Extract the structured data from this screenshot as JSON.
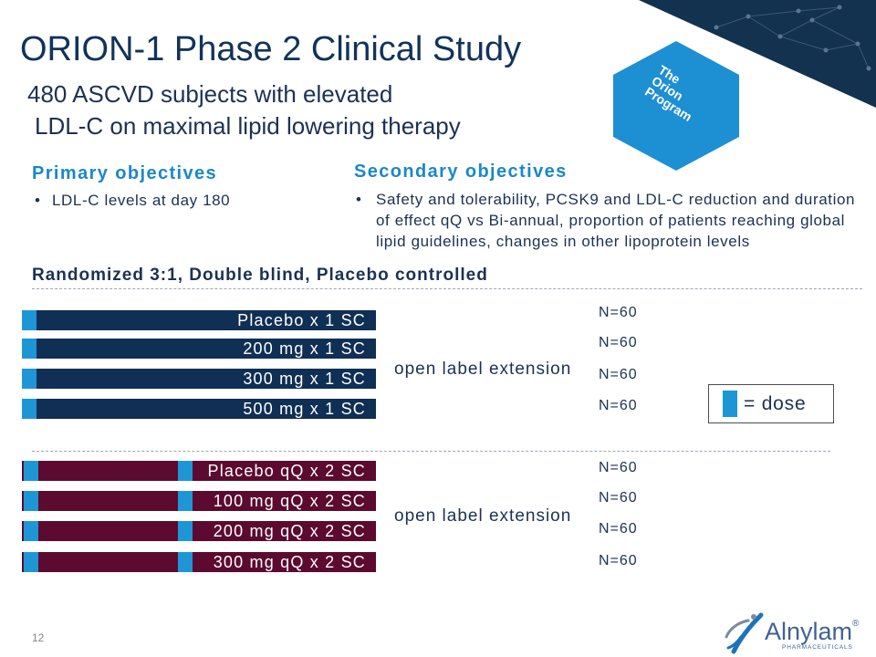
{
  "slide": {
    "title": "ORION-1 Phase 2 Clinical Study",
    "subtitle_line1": "480 ASCVD subjects with elevated",
    "subtitle_line2": "LDL-C on maximal lipid lowering therapy",
    "page_number": "12"
  },
  "program_logo": {
    "lines": [
      "The",
      "Orion",
      "Program"
    ]
  },
  "objectives": {
    "primary": {
      "heading": "Primary objectives",
      "bullets": [
        "LDL-C levels at day 180"
      ]
    },
    "secondary": {
      "heading": "Secondary objectives",
      "bullet_lines": [
        "Safety and tolerability, PCSK9 and LDL-C reduction and duration",
        "of effect qQ vs Bi-annual, proportion of patients reaching global",
        "lipid guidelines, changes in other lipoprotein levels"
      ]
    }
  },
  "design": {
    "label": "Randomized 3:1, Double blind, Placebo controlled"
  },
  "single_dose_arms": {
    "extension": "open label extension",
    "rows": [
      {
        "label": "Placebo x 1 SC",
        "n": "N=60"
      },
      {
        "label": "200 mg x 1 SC",
        "n": "N=60"
      },
      {
        "label": "300 mg x 1 SC",
        "n": "N=60"
      },
      {
        "label": "500 mg x 1 SC",
        "n": "N=60"
      }
    ]
  },
  "two_dose_arms": {
    "extension": "open label extension",
    "rows": [
      {
        "label": "Placebo qQ x 2 SC",
        "n": "N=60"
      },
      {
        "label": "100 mg qQ x 2 SC",
        "n": "N=60"
      },
      {
        "label": "200 mg qQ x 2 SC",
        "n": "N=60"
      },
      {
        "label": "300 mg qQ x 2 SC",
        "n": "N=60"
      }
    ]
  },
  "legend": {
    "label": "= dose"
  },
  "company_logo": {
    "name": "Alnylam",
    "registered": "®",
    "tagline": "PHARMACEUTICALS"
  },
  "colors": {
    "navy": "#0f2f55",
    "maroon": "#5c0a2f",
    "dose_blue": "#1e96d6",
    "heading_blue": "#1a88c9",
    "text": "#1c3154",
    "title": "#12335a",
    "logo_blue": "#1d8fd3",
    "banner": "#13324f",
    "wordmark": "#3e6394"
  }
}
